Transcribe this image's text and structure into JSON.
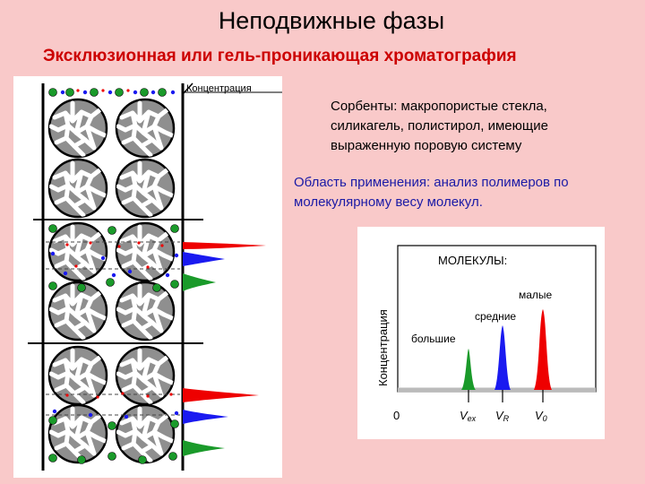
{
  "slide": {
    "title": "Неподвижные фазы",
    "subtitle": "Эксклюзионная или гель-проникающая хроматография",
    "sorbents_text": "Сорбенты: макропористые стекла, силикагель, полистирол, имеющие выраженную поровую систему",
    "application_text": "Область применения: анализ полимеров по молекулярному весу молекул."
  },
  "column_diagram": {
    "concentration_label": "Концентрация"
  },
  "chromatogram": {
    "molecules_label": "МОЛЕКУЛЫ:",
    "y_axis_label": "Концентрация",
    "origin_label": "0",
    "peaks": [
      {
        "label": "большие",
        "axis_label": "V",
        "axis_sub": "ex",
        "color": "#1a9a2a"
      },
      {
        "label": "средние",
        "axis_label": "V",
        "axis_sub": "R",
        "color": "#1a1af0"
      },
      {
        "label": "малые",
        "axis_label": "V",
        "axis_sub": "0",
        "color": "#ee0000"
      }
    ]
  },
  "colors": {
    "background": "#f9c9c9",
    "subtitle": "#cc0000",
    "application_text": "#1a1aa6",
    "small_molecules": "#ee0000",
    "medium_molecules": "#1a1af0",
    "large_molecules": "#1a9a2a",
    "bead_fill": "#8f8f8f"
  }
}
